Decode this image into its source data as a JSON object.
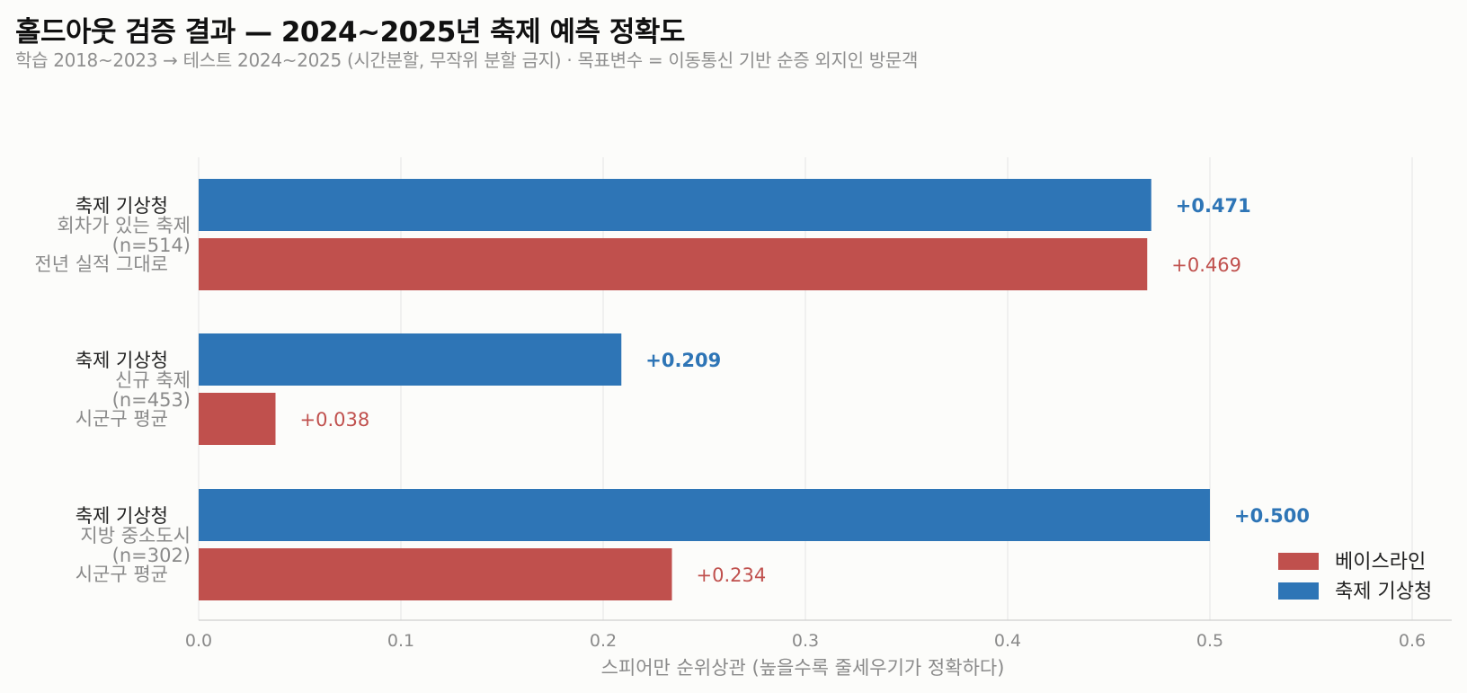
{
  "title": "홀드아웃 검증 결과 — 2024~2025년 축제 예측 정확도",
  "subtitle": "학습 2018~2023 → 테스트 2024~2025 (시간분할, 무작위 분할 금지) · 목표변수 = 이동통신 기반 순증 외지인 방문객",
  "colors": {
    "model": "#2e75b6",
    "baseline": "#c0504d",
    "grid": "#e4e4e4",
    "axis": "#cfcfcf",
    "muted": "#8a8a8a",
    "text": "#222222"
  },
  "chart_data": {
    "type": "bar",
    "orientation": "horizontal",
    "xlabel": "스피어만 순위상관 (높을수록 줄세우기가 정확하다)",
    "xlim": [
      0,
      0.62
    ],
    "xticks": [
      0.0,
      0.1,
      0.2,
      0.3,
      0.4,
      0.5,
      0.6
    ],
    "xtick_labels": [
      "0.0",
      "0.1",
      "0.2",
      "0.3",
      "0.4",
      "0.5",
      "0.6"
    ],
    "grid": "vertical",
    "legend_position": "bottom-right",
    "legend": [
      {
        "key": "baseline",
        "label": "베이스라인"
      },
      {
        "key": "model",
        "label": "축제 기상청"
      }
    ],
    "groups": [
      {
        "name": "회차가 있는 축제",
        "n_label": "(n=514)",
        "model_label": "축제 기상청",
        "baseline_label": "전년 실적 그대로",
        "model": 0.471,
        "model_text": "+0.471",
        "baseline": 0.469,
        "baseline_text": "+0.469"
      },
      {
        "name": "신규 축제",
        "n_label": "(n=453)",
        "model_label": "축제 기상청",
        "baseline_label": "시군구 평균",
        "model": 0.209,
        "model_text": "+0.209",
        "baseline": 0.038,
        "baseline_text": "+0.038"
      },
      {
        "name": "지방 중소도시",
        "n_label": "(n=302)",
        "model_label": "축제 기상청",
        "baseline_label": "시군구 평균",
        "model": 0.5,
        "model_text": "+0.500",
        "baseline": 0.234,
        "baseline_text": "+0.234"
      }
    ]
  }
}
